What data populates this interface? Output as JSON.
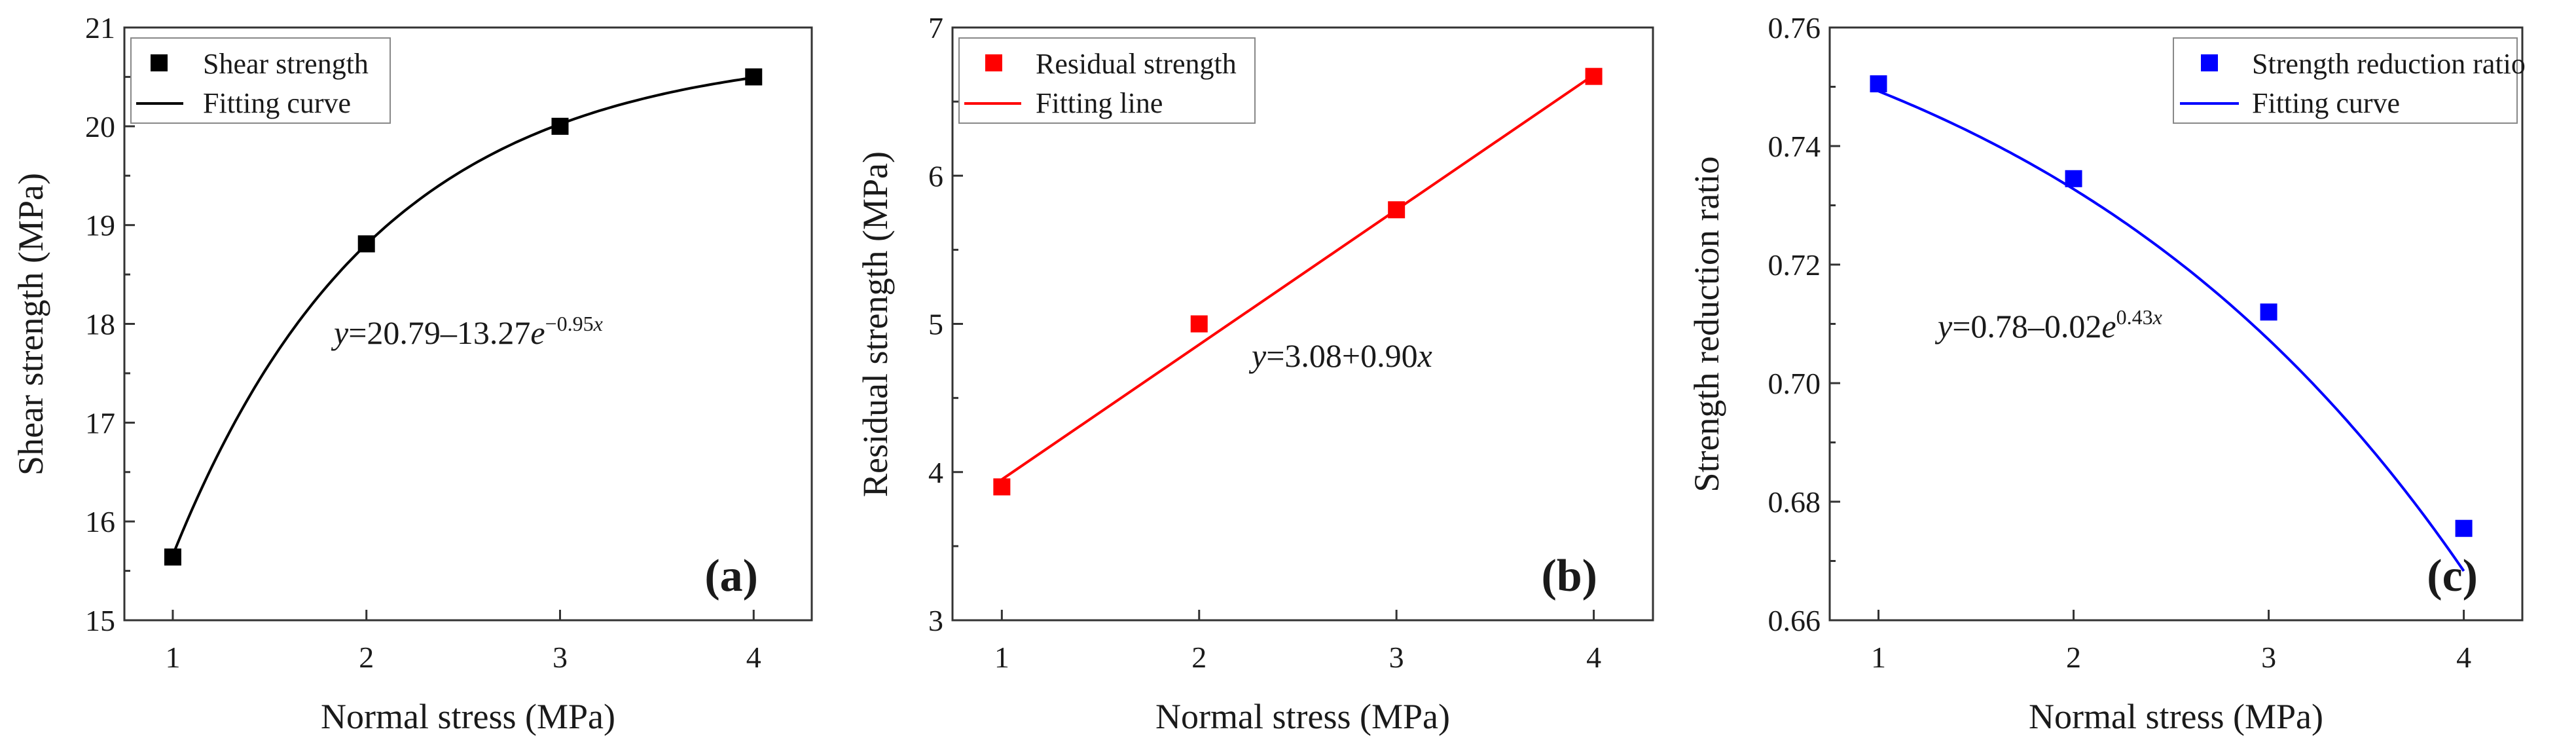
{
  "chart_data": [
    {
      "type": "scatter",
      "panel": "(a)",
      "xlabel": "Normal stress (MPa)",
      "ylabel": "Shear strength (MPa)",
      "xlim": [
        0.75,
        4.3
      ],
      "ylim": [
        15,
        21
      ],
      "xticks": [
        "1",
        "2",
        "3",
        "4"
      ],
      "yticks": [
        "15",
        "16",
        "17",
        "18",
        "19",
        "20",
        "21"
      ],
      "color": "#000000",
      "series": [
        {
          "name": "Shear strength",
          "marker": "square",
          "x": [
            1,
            2,
            3,
            4
          ],
          "y": [
            15.64,
            18.81,
            20.0,
            20.5
          ]
        }
      ],
      "fit": {
        "name": "Fitting curve",
        "model": "exp",
        "a": 20.79,
        "b": -13.27,
        "c": -0.95
      },
      "equation": {
        "y": "y",
        "body": "=20.79–13.27",
        "e": "e",
        "sup": "−0.95",
        "x": "x"
      },
      "legend": [
        {
          "label": "Shear strength",
          "kind": "marker"
        },
        {
          "label": "Fitting curve",
          "kind": "line"
        }
      ],
      "legend_position": "top-left"
    },
    {
      "type": "scatter",
      "panel": "(b)",
      "xlabel": "Normal stress (MPa)",
      "ylabel": "Residual strength (MPa)",
      "xlim": [
        0.75,
        4.3
      ],
      "ylim": [
        3,
        7
      ],
      "xticks": [
        "1",
        "2",
        "3",
        "4"
      ],
      "yticks": [
        "3",
        "4",
        "5",
        "6",
        "7"
      ],
      "color": "#ff0000",
      "series": [
        {
          "name": "Residual strength",
          "marker": "square",
          "x": [
            1,
            2,
            3,
            4
          ],
          "y": [
            3.9,
            5.0,
            5.77,
            6.67
          ]
        }
      ],
      "fit": {
        "name": "Fitting line",
        "model": "linear",
        "a": 3.08,
        "b": 0.9,
        "y_start": 3.95
      },
      "equation": {
        "y": "y",
        "body": "=3.08+0.90",
        "x": "x"
      },
      "legend": [
        {
          "label": "Residual strength",
          "kind": "marker"
        },
        {
          "label": "Fitting line",
          "kind": "line"
        }
      ],
      "legend_position": "top-left"
    },
    {
      "type": "scatter",
      "panel": "(c)",
      "xlabel": "Normal stress (MPa)",
      "ylabel": "Strength reduction ratio",
      "xlim": [
        0.75,
        4.3
      ],
      "ylim": [
        0.66,
        0.76
      ],
      "xticks": [
        "1",
        "2",
        "3",
        "4"
      ],
      "yticks": [
        "0.66",
        "0.68",
        "0.70",
        "0.72",
        "0.74",
        "0.76"
      ],
      "color": "#0000ff",
      "series": [
        {
          "name": "Strength reduction ratio",
          "marker": "square",
          "x": [
            1,
            2,
            3,
            4
          ],
          "y": [
            0.7505,
            0.7345,
            0.712,
            0.6755
          ]
        }
      ],
      "fit": {
        "name": "Fitting curve",
        "model": "exp",
        "a": 0.78,
        "b": -0.02,
        "c": 0.43
      },
      "equation": {
        "y": "y",
        "body": "=0.78–0.02",
        "e": "e",
        "sup": "0.43",
        "x": "x"
      },
      "legend": [
        {
          "label": "Strength reduction ratio",
          "kind": "marker"
        },
        {
          "label": "Fitting curve",
          "kind": "line"
        }
      ],
      "legend_position": "top-right"
    }
  ]
}
